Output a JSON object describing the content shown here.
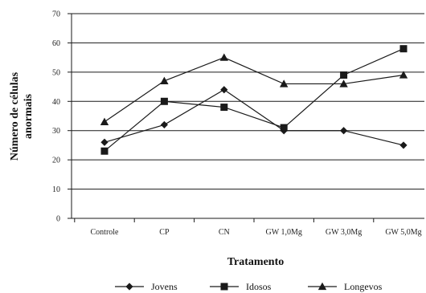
{
  "chart_data": {
    "type": "line",
    "xlabel": "Tratamento",
    "ylabel": [
      "Número de células",
      "anormais"
    ],
    "categories": [
      "Controle",
      "CP",
      "CN",
      "GW 1,0Mg",
      "GW 3,0Mg",
      "GW 5,0Mg"
    ],
    "ylim": [
      0,
      70
    ],
    "yticks": [
      0,
      10,
      20,
      30,
      40,
      50,
      60,
      70
    ],
    "grid": true,
    "legend_position": "bottom",
    "series": [
      {
        "name": "Jovens",
        "marker": "diamond",
        "values": [
          26,
          32,
          44,
          30,
          30,
          25
        ]
      },
      {
        "name": "Idosos",
        "marker": "square",
        "values": [
          23,
          40,
          38,
          31,
          49,
          58
        ]
      },
      {
        "name": "Longevos",
        "marker": "triangle",
        "values": [
          33,
          47,
          55,
          46,
          46,
          49
        ]
      }
    ],
    "colors": {
      "line": "#1a1a1a",
      "grid": "#1a1a1a",
      "axis": "#1a1a1a"
    }
  }
}
